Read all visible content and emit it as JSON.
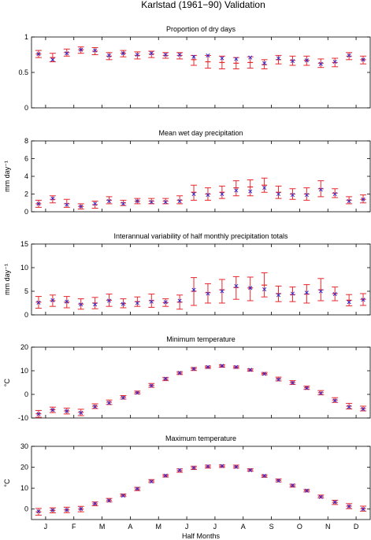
{
  "figure": {
    "title": "Karlstad (1961−90) Validation",
    "xlabel": "Half Months",
    "month_labels": [
      "J",
      "F",
      "M",
      "A",
      "M",
      "J",
      "J",
      "A",
      "S",
      "O",
      "N",
      "D"
    ],
    "colors": {
      "range": "#e8262b",
      "observed": "#e8262b",
      "simulated": "#2b2bd6",
      "axes": "#000000"
    }
  },
  "chart_data": [
    {
      "type": "errorbar",
      "title": "Proportion of dry days",
      "ylabel": "",
      "ylim": [
        0,
        1
      ],
      "yticks": [
        0,
        0.5,
        1
      ],
      "x": [
        1,
        2,
        3,
        4,
        5,
        6,
        7,
        8,
        9,
        10,
        11,
        12,
        13,
        14,
        15,
        16,
        17,
        18,
        19,
        20,
        21,
        22,
        23,
        24
      ],
      "observed": [
        0.76,
        0.71,
        0.78,
        0.82,
        0.8,
        0.73,
        0.77,
        0.74,
        0.76,
        0.74,
        0.74,
        0.68,
        0.65,
        0.64,
        0.63,
        0.64,
        0.61,
        0.68,
        0.67,
        0.67,
        0.63,
        0.64,
        0.73,
        0.68
      ],
      "low": [
        0.71,
        0.65,
        0.73,
        0.77,
        0.75,
        0.68,
        0.72,
        0.69,
        0.71,
        0.7,
        0.69,
        0.6,
        0.56,
        0.55,
        0.55,
        0.56,
        0.55,
        0.62,
        0.6,
        0.6,
        0.57,
        0.58,
        0.68,
        0.62
      ],
      "high": [
        0.81,
        0.77,
        0.83,
        0.86,
        0.85,
        0.78,
        0.81,
        0.79,
        0.8,
        0.78,
        0.78,
        0.74,
        0.74,
        0.73,
        0.71,
        0.72,
        0.68,
        0.74,
        0.73,
        0.73,
        0.69,
        0.7,
        0.78,
        0.73
      ],
      "simulated": [
        0.76,
        0.68,
        0.77,
        0.82,
        0.81,
        0.74,
        0.77,
        0.75,
        0.77,
        0.75,
        0.75,
        0.72,
        0.74,
        0.7,
        0.69,
        0.71,
        0.63,
        0.7,
        0.66,
        0.67,
        0.62,
        0.65,
        0.74,
        0.68
      ]
    },
    {
      "type": "errorbar",
      "title": "Mean wet day precipitation",
      "ylabel": "mm day⁻¹",
      "ylim": [
        0,
        8
      ],
      "yticks": [
        0,
        2,
        4,
        6,
        8
      ],
      "x": [
        1,
        2,
        3,
        4,
        5,
        6,
        7,
        8,
        9,
        10,
        11,
        12,
        13,
        14,
        15,
        16,
        17,
        18,
        19,
        20,
        21,
        22,
        23,
        24
      ],
      "observed": [
        0.9,
        1.4,
        0.9,
        0.6,
        0.8,
        1.3,
        1.0,
        1.2,
        1.2,
        1.2,
        1.3,
        2.2,
        2.0,
        2.2,
        2.7,
        2.8,
        3.0,
        2.2,
        2.0,
        2.0,
        2.6,
        2.1,
        1.3,
        1.4
      ],
      "low": [
        0.5,
        1.0,
        0.5,
        0.3,
        0.4,
        0.9,
        0.7,
        0.9,
        0.9,
        0.9,
        0.9,
        1.3,
        1.3,
        1.5,
        1.8,
        1.8,
        2.2,
        1.5,
        1.4,
        1.3,
        1.7,
        1.6,
        0.9,
        1.0
      ],
      "high": [
        1.3,
        1.8,
        1.4,
        0.9,
        1.2,
        1.7,
        1.3,
        1.5,
        1.5,
        1.5,
        1.8,
        3.0,
        2.7,
        2.9,
        3.5,
        3.6,
        3.8,
        2.9,
        2.6,
        2.7,
        3.5,
        2.6,
        1.7,
        1.9
      ],
      "simulated": [
        0.9,
        1.5,
        0.8,
        0.6,
        0.9,
        1.2,
        0.9,
        1.2,
        1.1,
        1.1,
        1.2,
        2.0,
        1.9,
        2.0,
        2.4,
        2.3,
        2.7,
        2.0,
        1.9,
        1.9,
        2.5,
        2.0,
        1.2,
        1.4
      ]
    },
    {
      "type": "errorbar",
      "title": "Interannual variability of half monthly precipitation totals",
      "ylabel": "mm day⁻¹",
      "ylim": [
        0,
        15
      ],
      "yticks": [
        0,
        5,
        10,
        15
      ],
      "x": [
        1,
        2,
        3,
        4,
        5,
        6,
        7,
        8,
        9,
        10,
        11,
        12,
        13,
        14,
        15,
        16,
        17,
        18,
        19,
        20,
        21,
        22,
        23,
        24
      ],
      "observed": [
        2.7,
        3.0,
        2.7,
        2.3,
        2.5,
        3.1,
        2.4,
        2.8,
        3.0,
        2.6,
        2.7,
        5.0,
        4.7,
        5.3,
        5.8,
        5.7,
        6.3,
        4.5,
        4.3,
        4.4,
        5.3,
        4.5,
        3.1,
        3.3
      ],
      "low": [
        1.4,
        1.8,
        1.5,
        1.2,
        1.3,
        1.8,
        1.5,
        1.8,
        1.6,
        1.8,
        1.2,
        2.0,
        2.5,
        2.5,
        3.3,
        3.0,
        3.8,
        2.8,
        2.8,
        2.5,
        3.0,
        3.0,
        1.9,
        2.0
      ],
      "high": [
        3.9,
        4.2,
        3.9,
        3.4,
        3.7,
        4.4,
        3.4,
        3.8,
        4.4,
        3.4,
        4.2,
        7.9,
        6.6,
        7.5,
        8.1,
        8.0,
        8.9,
        6.1,
        5.9,
        6.4,
        7.7,
        5.9,
        4.3,
        4.5
      ],
      "simulated": [
        2.6,
        3.1,
        2.8,
        2.2,
        2.2,
        3.0,
        2.3,
        2.5,
        2.8,
        2.7,
        3.0,
        5.3,
        4.5,
        5.0,
        6.1,
        5.7,
        5.4,
        4.2,
        4.5,
        4.7,
        5.0,
        4.4,
        2.7,
        3.2
      ]
    },
    {
      "type": "errorbar",
      "title": "Minimum temperature",
      "ylabel": "°C",
      "ylim": [
        -10,
        20
      ],
      "yticks": [
        -10,
        0,
        10,
        20
      ],
      "x": [
        1,
        2,
        3,
        4,
        5,
        6,
        7,
        8,
        9,
        10,
        11,
        12,
        13,
        14,
        15,
        16,
        17,
        18,
        19,
        20,
        21,
        22,
        23,
        24
      ],
      "observed": [
        -8.2,
        -6.5,
        -7.0,
        -7.6,
        -5.0,
        -3.3,
        -1.2,
        0.8,
        3.8,
        6.5,
        9.0,
        10.8,
        11.5,
        12.0,
        11.5,
        10.3,
        8.8,
        6.5,
        5.0,
        2.8,
        0.7,
        -2.4,
        -5.0,
        -6.0
      ],
      "low": [
        -9.7,
        -7.7,
        -8.3,
        -9.0,
        -6.0,
        -4.3,
        -2.0,
        0.2,
        3.0,
        5.8,
        8.4,
        10.1,
        11.0,
        11.5,
        11.0,
        9.8,
        8.3,
        5.7,
        4.2,
        2.1,
        -0.2,
        -3.4,
        -6.2,
        -7.0
      ],
      "high": [
        -6.8,
        -5.4,
        -5.8,
        -6.3,
        -4.0,
        -2.4,
        -0.5,
        1.4,
        4.6,
        7.2,
        9.6,
        11.4,
        12.0,
        12.5,
        12.0,
        10.8,
        9.3,
        7.3,
        5.8,
        3.5,
        1.6,
        -1.4,
        -3.8,
        -5.0
      ],
      "simulated": [
        -8.3,
        -6.6,
        -7.1,
        -7.8,
        -5.2,
        -3.6,
        -1.4,
        0.7,
        3.7,
        6.6,
        9.1,
        10.8,
        11.6,
        12.1,
        11.6,
        10.4,
        8.7,
        6.3,
        4.9,
        2.7,
        0.5,
        -2.6,
        -5.3,
        -6.2
      ]
    },
    {
      "type": "errorbar",
      "title": "Maximum temperature",
      "ylabel": "°C",
      "ylim": [
        -5,
        30
      ],
      "yticks": [
        0,
        10,
        20,
        30
      ],
      "x": [
        1,
        2,
        3,
        4,
        5,
        6,
        7,
        8,
        9,
        10,
        11,
        12,
        13,
        14,
        15,
        16,
        17,
        18,
        19,
        20,
        21,
        22,
        23,
        24
      ],
      "observed": [
        -1.3,
        -0.6,
        -0.4,
        0.0,
        2.5,
        4.2,
        6.6,
        9.6,
        13.4,
        15.9,
        18.4,
        19.7,
        20.3,
        20.5,
        20.3,
        18.7,
        15.8,
        13.7,
        11.2,
        8.8,
        6.0,
        3.2,
        1.4,
        0.2
      ],
      "low": [
        -2.9,
        -1.8,
        -1.7,
        -1.3,
        1.6,
        3.4,
        6.0,
        8.8,
        12.7,
        15.3,
        17.6,
        18.9,
        19.6,
        19.9,
        19.6,
        18.1,
        15.2,
        13.0,
        10.5,
        8.2,
        5.3,
        2.2,
        0.2,
        -1.0
      ],
      "high": [
        0.3,
        0.6,
        0.9,
        1.3,
        3.4,
        5.1,
        7.2,
        10.4,
        14.1,
        16.5,
        19.2,
        20.5,
        21.0,
        21.1,
        21.0,
        19.3,
        16.4,
        14.4,
        11.9,
        9.4,
        6.7,
        4.2,
        2.6,
        1.4
      ],
      "simulated": [
        -1.1,
        -0.5,
        -0.4,
        0.1,
        2.6,
        4.1,
        6.4,
        9.7,
        13.2,
        16.0,
        18.6,
        19.7,
        20.4,
        20.6,
        20.2,
        18.6,
        15.9,
        13.6,
        11.3,
        8.8,
        5.8,
        3.3,
        1.3,
        0.0
      ]
    }
  ]
}
